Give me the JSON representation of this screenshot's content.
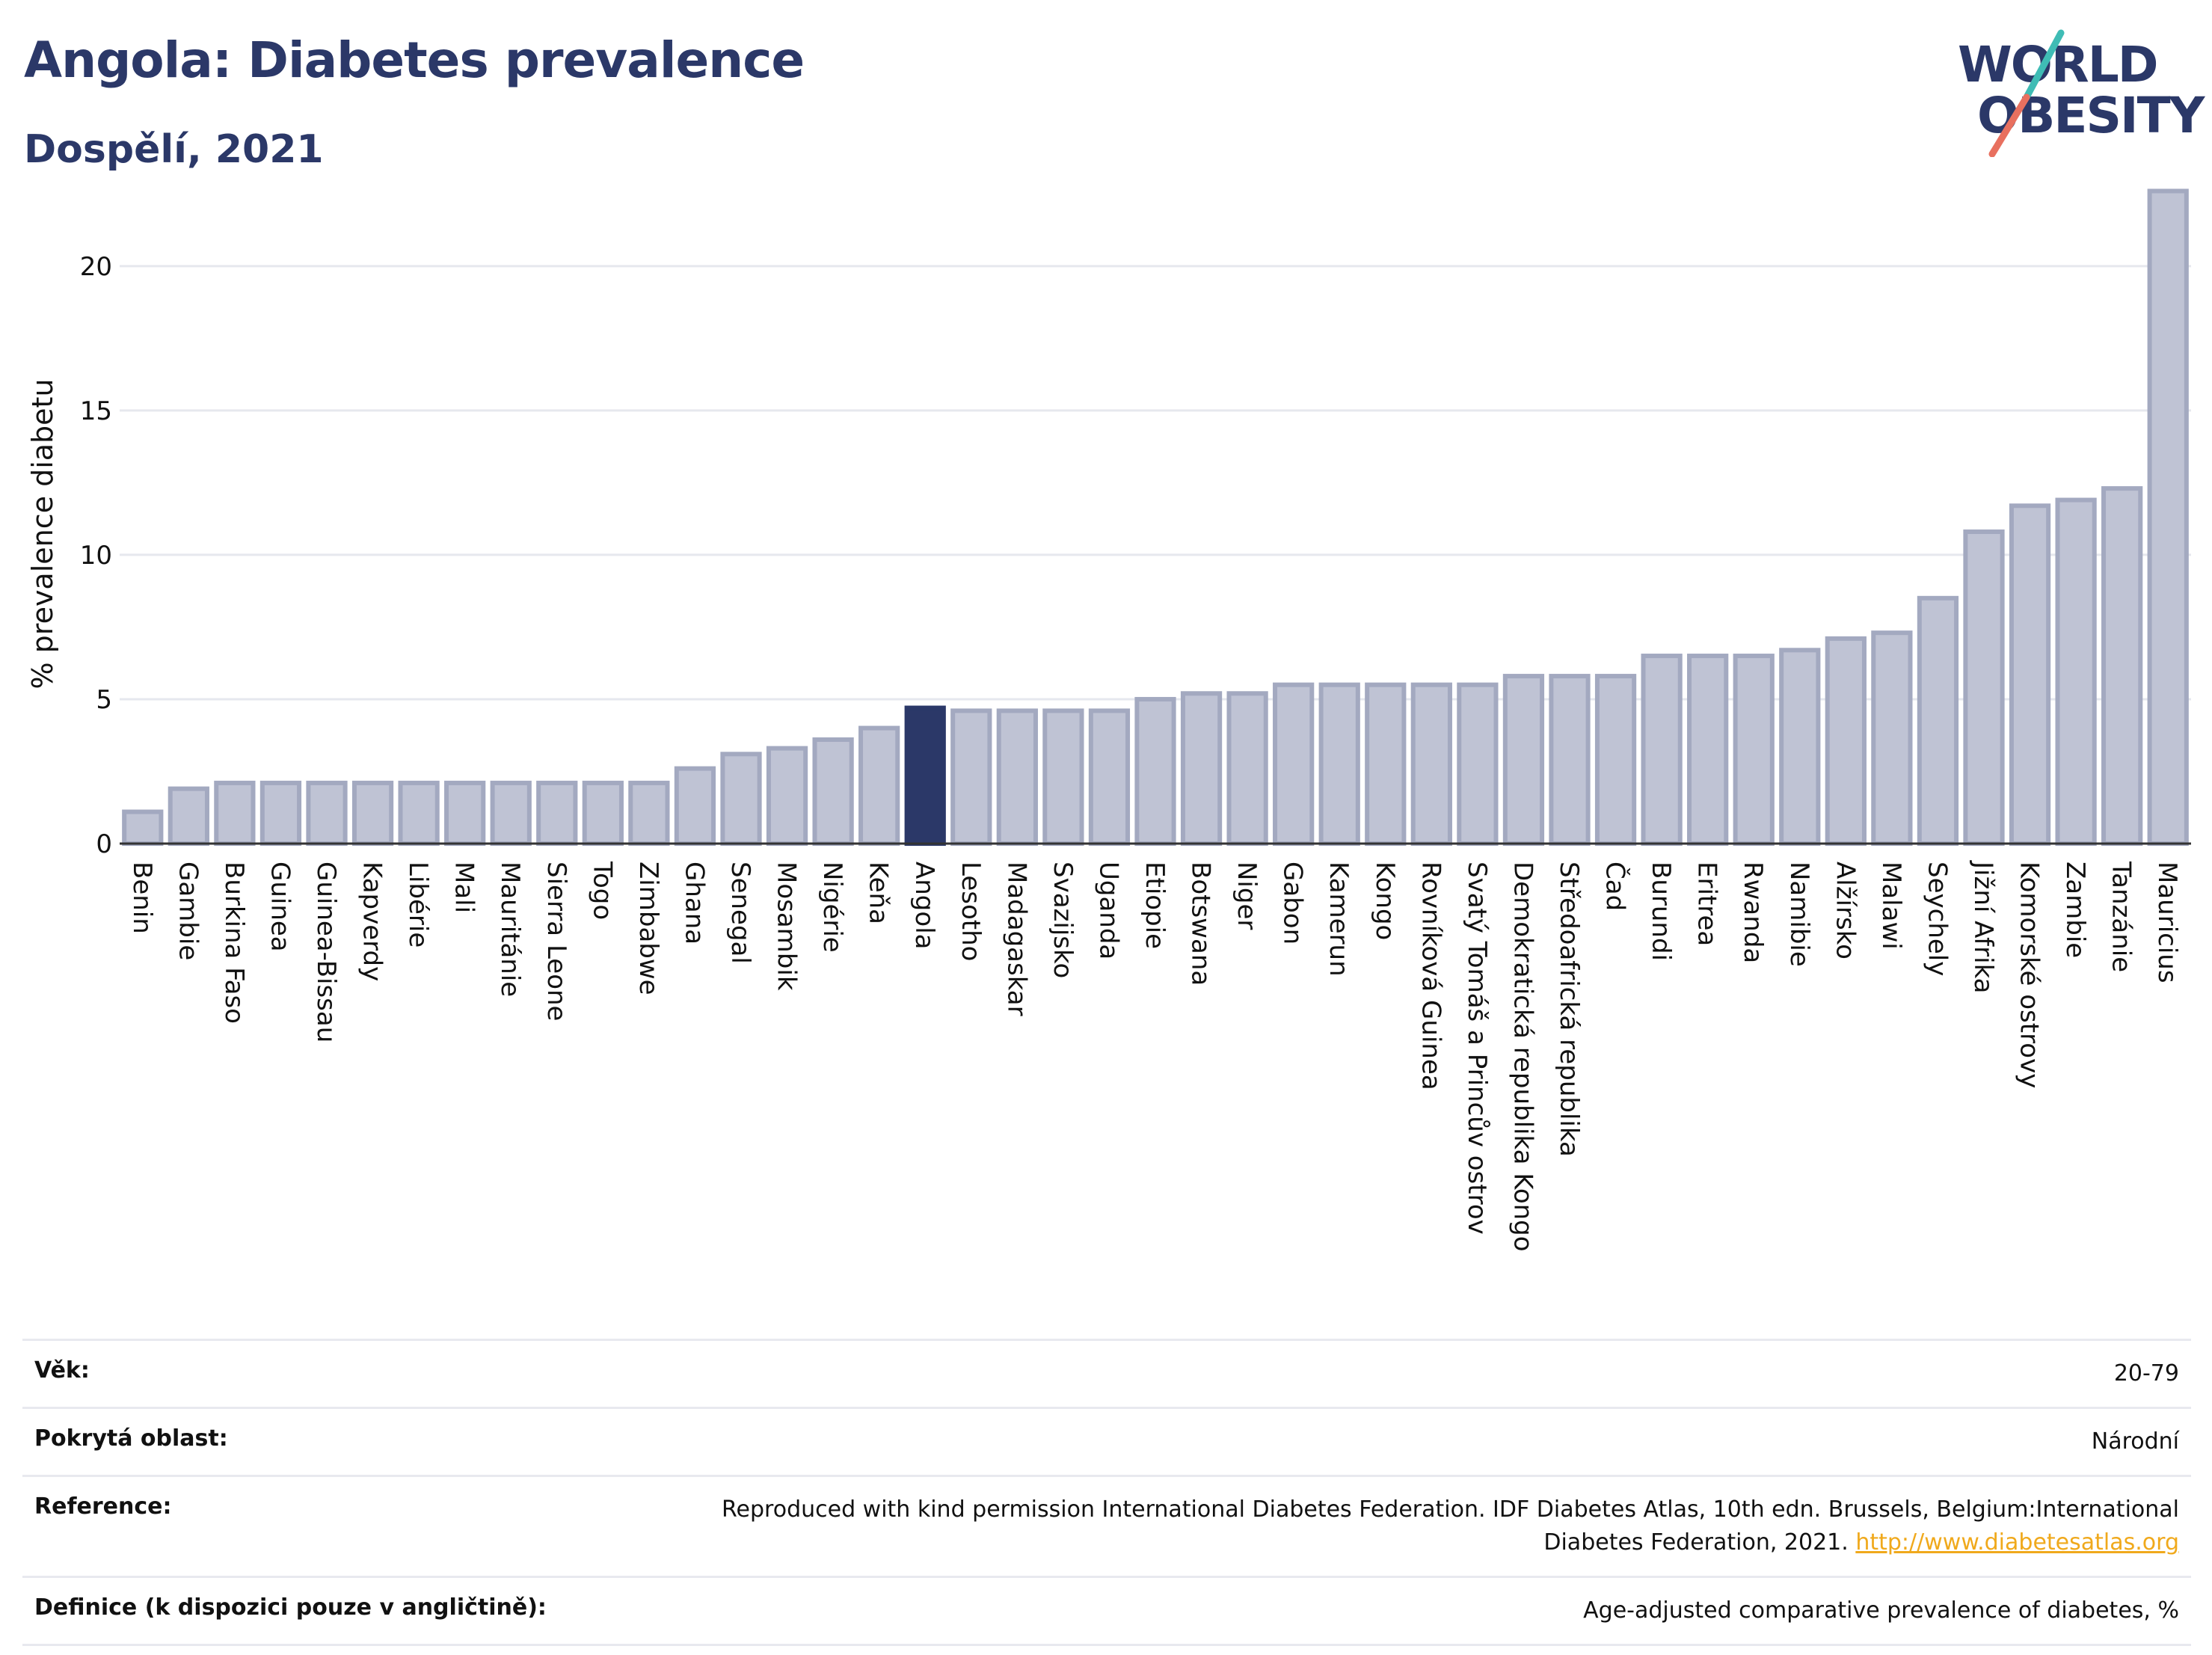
{
  "header": {
    "title": "Angola: Diabetes prevalence",
    "subtitle": "Dospělí, 2021"
  },
  "logo": {
    "line1": "WORLD",
    "line2": "OBESITY",
    "accent_colors": [
      "#3fbcb5",
      "#e8705f"
    ]
  },
  "colors": {
    "highlight": "#2b3868",
    "bar": "#bfc3d4",
    "bar_border": "#a3a9c0",
    "link": "#f0a91c"
  },
  "chart_data": {
    "type": "bar",
    "title": "",
    "xlabel": "",
    "ylabel": "% prevalence diabetu",
    "ylim": [
      0,
      23
    ],
    "yticks": [
      0,
      5,
      10,
      15,
      20
    ],
    "grid": true,
    "highlight": "Angola",
    "categories": [
      "Benin",
      "Gambie",
      "Burkina Faso",
      "Guinea",
      "Guinea-Bissau",
      "Kapverdy",
      "Libérie",
      "Mali",
      "Mauritánie",
      "Sierra Leone",
      "Togo",
      "Zimbabwe",
      "Ghana",
      "Senegal",
      "Mosambik",
      "Nigérie",
      "Keňa",
      "Angola",
      "Lesotho",
      "Madagaskar",
      "Svazijsko",
      "Uganda",
      "Etiopie",
      "Botswana",
      "Niger",
      "Gabon",
      "Kamerun",
      "Kongo",
      "Rovníková Guinea",
      "Svatý Tomáš a Princův ostrov",
      "Demokratická republika Kongo",
      "Středoafrická republika",
      "Čad",
      "Burundi",
      "Eritrea",
      "Rwanda",
      "Namibie",
      "Alžírsko",
      "Malawi",
      "Seychely",
      "Jižní Afrika",
      "Komorské ostrovy",
      "Zambie",
      "Tanzánie",
      "Mauricius"
    ],
    "values": [
      1.1,
      1.9,
      2.1,
      2.1,
      2.1,
      2.1,
      2.1,
      2.1,
      2.1,
      2.1,
      2.1,
      2.1,
      2.6,
      3.1,
      3.3,
      3.6,
      4.0,
      4.7,
      4.6,
      4.6,
      4.6,
      4.6,
      5.0,
      5.2,
      5.2,
      5.5,
      5.5,
      5.5,
      5.5,
      5.5,
      5.8,
      5.8,
      5.8,
      6.5,
      6.5,
      6.5,
      6.7,
      7.1,
      7.3,
      8.5,
      10.8,
      11.7,
      11.9,
      12.3,
      22.6
    ]
  },
  "info": [
    {
      "key": "Věk:",
      "value": "20-79",
      "link": ""
    },
    {
      "key": "Pokrytá oblast:",
      "value": "Národní",
      "link": ""
    },
    {
      "key": "Reference:",
      "value": "Reproduced with kind permission International Diabetes Federation.  IDF Diabetes Atlas, 10th edn. Brussels, Belgium:International Diabetes Federation, 2021.",
      "link": "http://www.diabetesatlas.org"
    },
    {
      "key": "Definice (k dispozici pouze v angličtině):",
      "value": "Age-adjusted comparative prevalence of diabetes, %",
      "link": ""
    }
  ]
}
